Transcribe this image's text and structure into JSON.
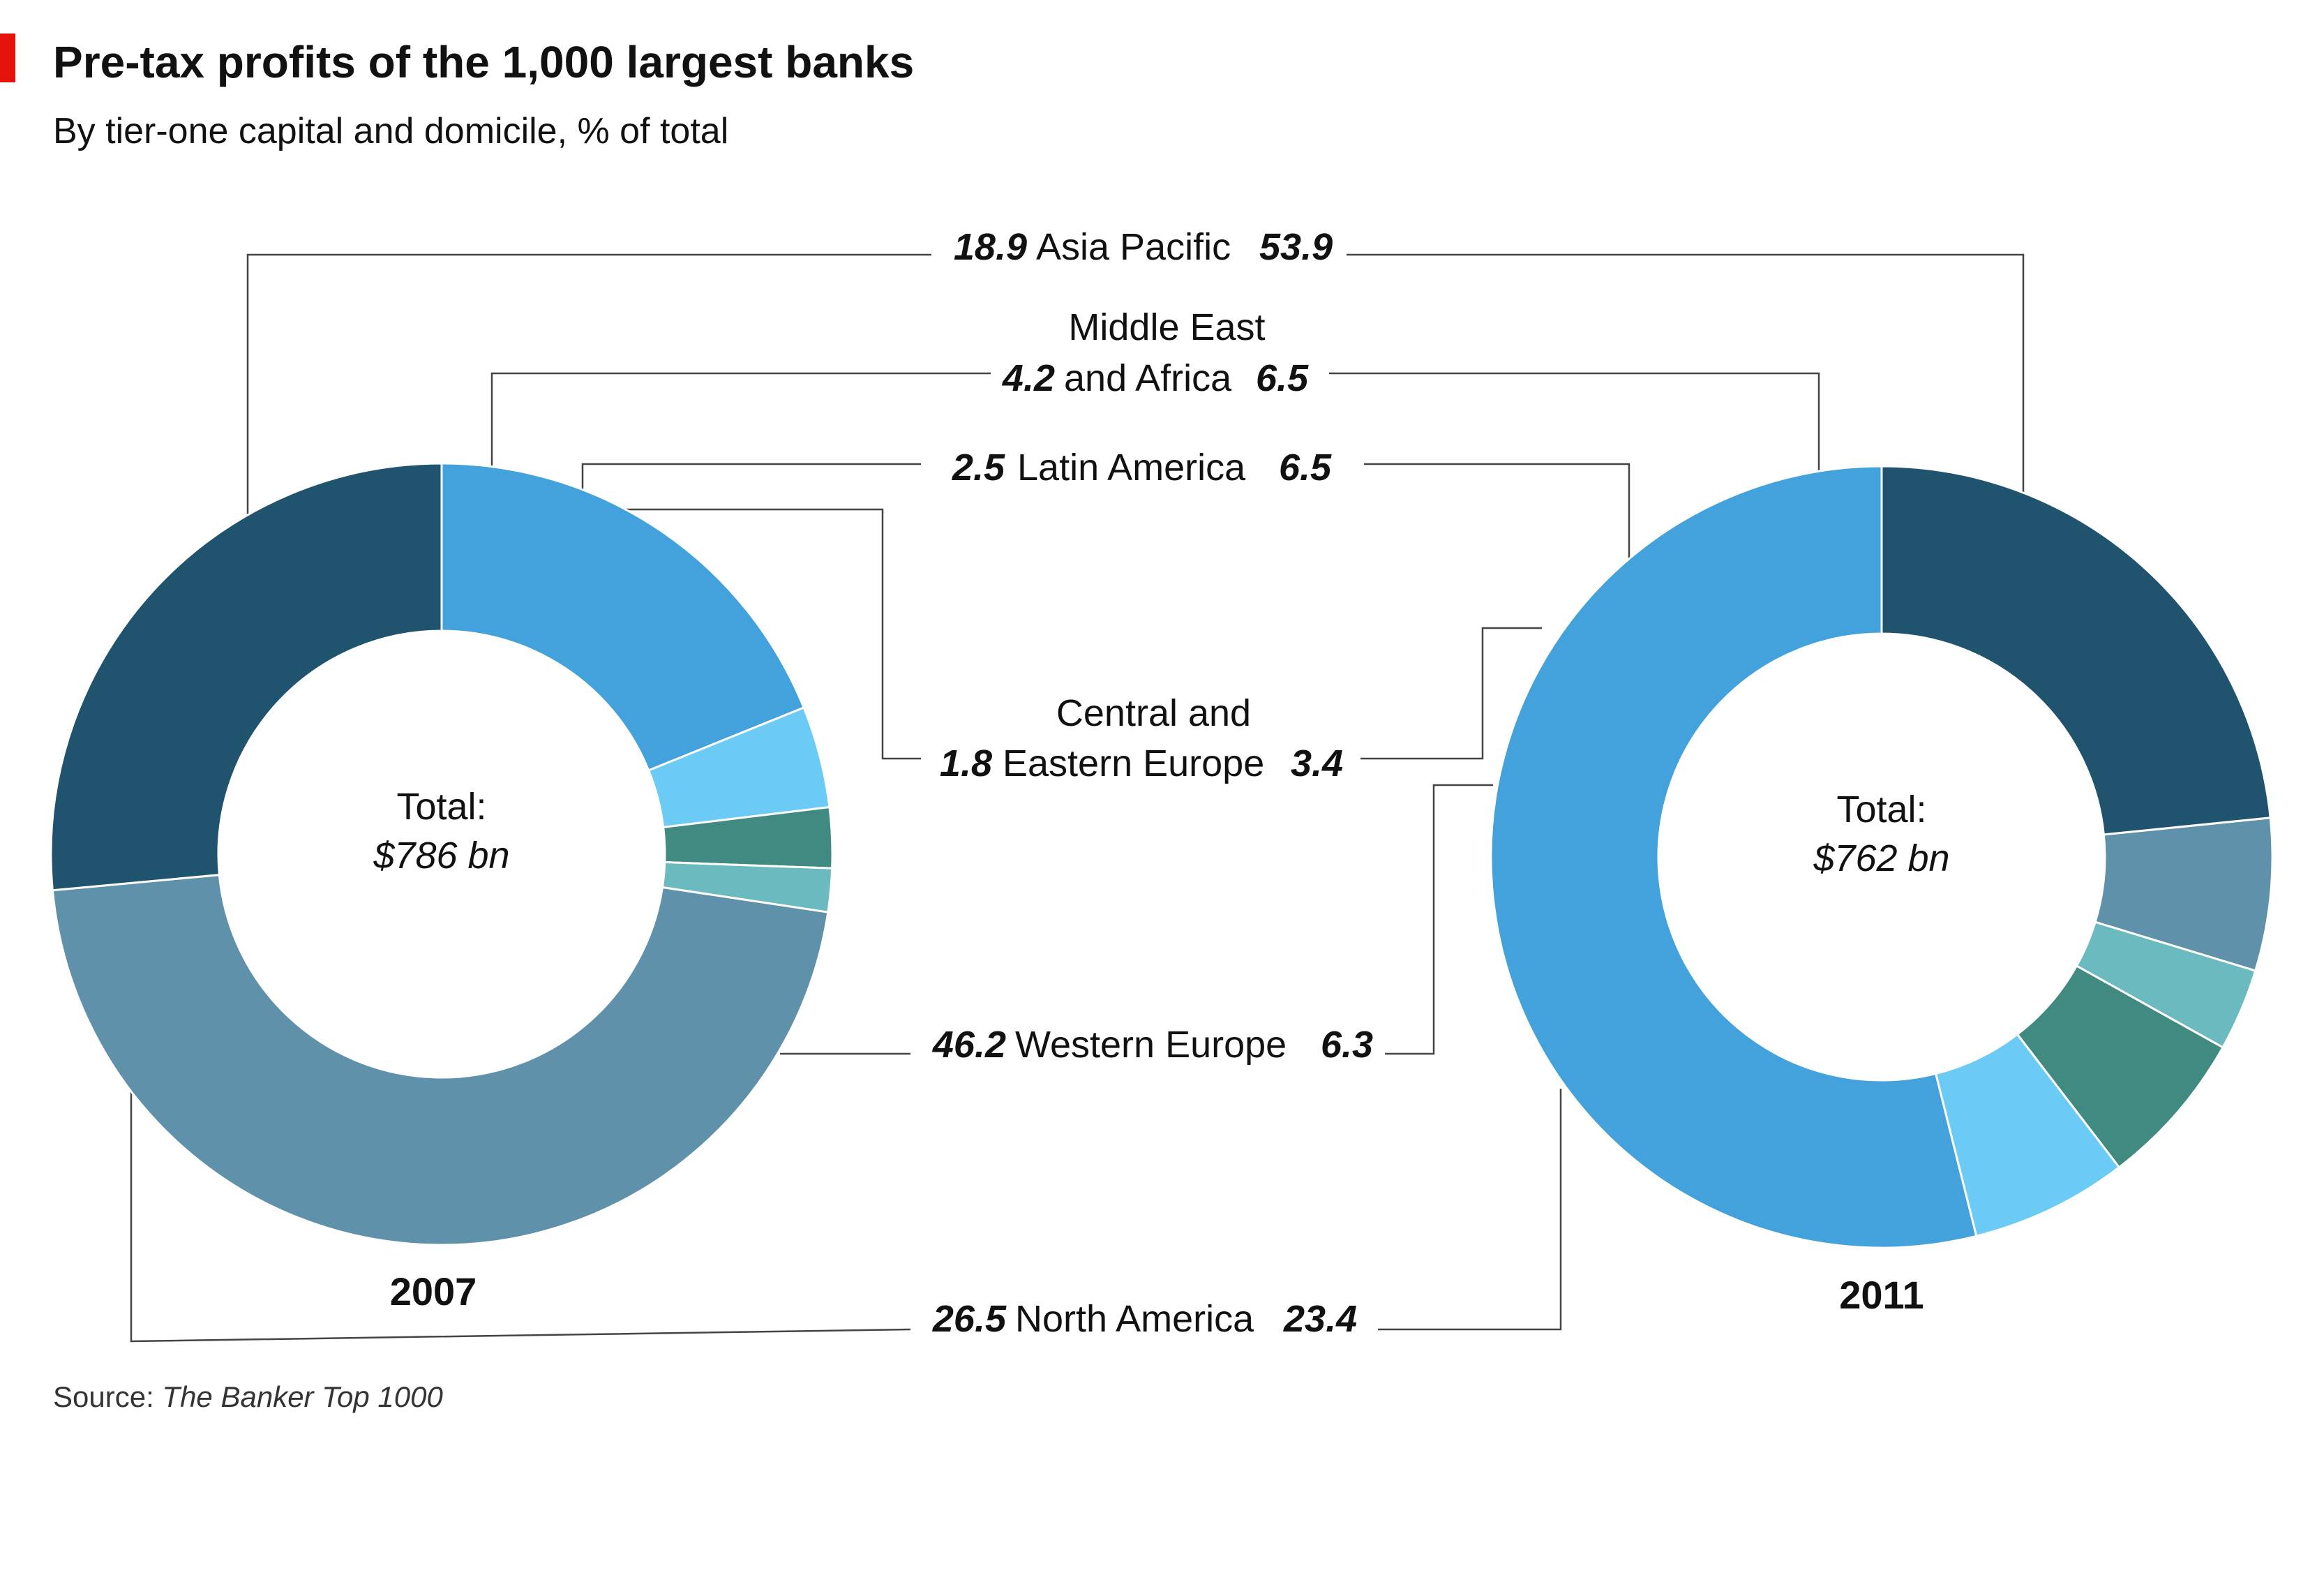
{
  "title": "Pre-tax profits of the 1,000 largest banks",
  "subtitle": "By tier-one capital and domicile, % of total",
  "source_label": "Source:",
  "source_name": "The Banker Top 1000",
  "total_label": "Total:",
  "colors": {
    "accent": "#e3120b",
    "Asia Pacific": "#43a1dc",
    "Middle East and Africa": "#6bcbf4",
    "Latin America": "#408a82",
    "Central and Eastern Europe": "#6bbabf",
    "Western Europe": "#6091aa",
    "North America": "#20536e",
    "leader": "#444444"
  },
  "chart_data": [
    {
      "type": "pie",
      "variant": "donut",
      "label": "2007",
      "total": "$786 bn",
      "categories": [
        "Asia Pacific",
        "Middle East and Africa",
        "Latin America",
        "Central and Eastern Europe",
        "Western Europe",
        "North America"
      ],
      "values": [
        18.9,
        4.2,
        2.5,
        1.8,
        46.2,
        26.5
      ]
    },
    {
      "type": "pie",
      "variant": "donut",
      "label": "2011",
      "total": "$762 bn",
      "categories": [
        "Asia Pacific",
        "Middle East and Africa",
        "Latin America",
        "Central and Eastern Europe",
        "Western Europe",
        "North America"
      ],
      "values": [
        53.9,
        6.5,
        6.5,
        3.4,
        6.3,
        23.4
      ]
    }
  ],
  "labels": [
    {
      "key": "Asia Pacific",
      "lines": [
        "Asia Pacific"
      ],
      "v2007": "18.9",
      "v2011": "53.9"
    },
    {
      "key": "Middle East and Africa",
      "lines": [
        "Middle East",
        "and Africa"
      ],
      "v2007": "4.2",
      "v2011": "6.5"
    },
    {
      "key": "Latin America",
      "lines": [
        "Latin America"
      ],
      "v2007": "2.5",
      "v2011": "6.5"
    },
    {
      "key": "Central and Eastern Europe",
      "lines": [
        "Central and",
        "Eastern Europe"
      ],
      "v2007": "1.8",
      "v2011": "3.4"
    },
    {
      "key": "Western Europe",
      "lines": [
        "Western Europe"
      ],
      "v2007": "46.2",
      "v2011": "6.3"
    },
    {
      "key": "North America",
      "lines": [
        "North America"
      ],
      "v2007": "26.5",
      "v2011": "23.4"
    }
  ]
}
